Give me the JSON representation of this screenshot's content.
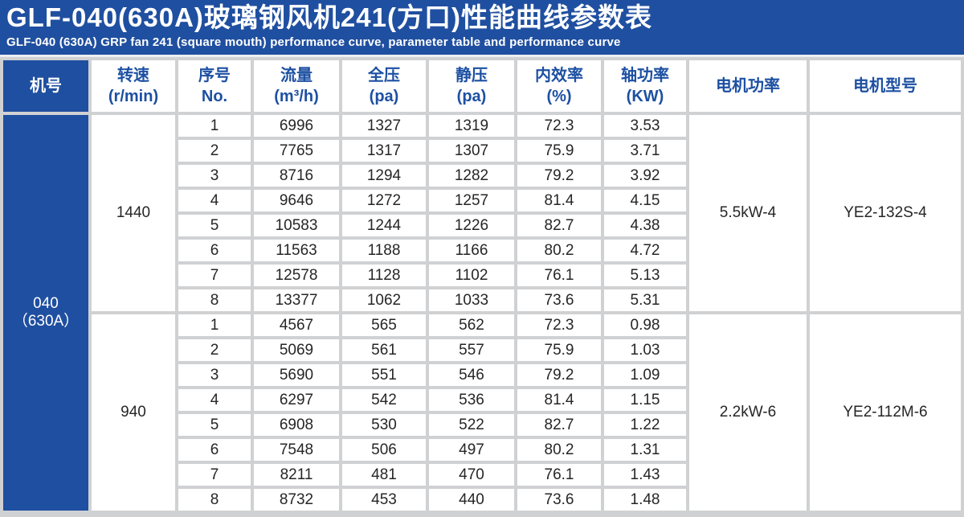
{
  "title": {
    "zh": "GLF-040(630A)玻璃钢风机241(方口)性能曲线参数表",
    "en": "GLF-040 (630A) GRP fan 241 (square mouth) performance curve, parameter table and performance curve"
  },
  "colors": {
    "banner_blue": "#1f4fa0",
    "header_text_blue": "#1d50a2",
    "grid_gray": "#d0d1d3",
    "data_text": "#262626"
  },
  "table": {
    "headers": {
      "machine_no": "机号",
      "speed": [
        "转速",
        "(r/min)"
      ],
      "no": [
        "序号",
        "No."
      ],
      "flow": [
        "流量",
        "(m³/h)"
      ],
      "total_pressure": [
        "全压",
        "(pa)"
      ],
      "static_pressure": [
        "静压",
        "(pa)"
      ],
      "efficiency": [
        "内效率",
        "(%)"
      ],
      "shaft_power": [
        "轴功率",
        "(KW)"
      ],
      "motor_power": "电机功率",
      "motor_model": "电机型号"
    },
    "machine_no": [
      "040",
      "（630A）"
    ],
    "sections": [
      {
        "speed": "1440",
        "motor_power": "5.5kW-4",
        "motor_model": "YE2-132S-4",
        "rows": [
          [
            "1",
            "6996",
            "1327",
            "1319",
            "72.3",
            "3.53"
          ],
          [
            "2",
            "7765",
            "1317",
            "1307",
            "75.9",
            "3.71"
          ],
          [
            "3",
            "8716",
            "1294",
            "1282",
            "79.2",
            "3.92"
          ],
          [
            "4",
            "9646",
            "1272",
            "1257",
            "81.4",
            "4.15"
          ],
          [
            "5",
            "10583",
            "1244",
            "1226",
            "82.7",
            "4.38"
          ],
          [
            "6",
            "11563",
            "1188",
            "1166",
            "80.2",
            "4.72"
          ],
          [
            "7",
            "12578",
            "1128",
            "1102",
            "76.1",
            "5.13"
          ],
          [
            "8",
            "13377",
            "1062",
            "1033",
            "73.6",
            "5.31"
          ]
        ]
      },
      {
        "speed": "940",
        "motor_power": "2.2kW-6",
        "motor_model": "YE2-112M-6",
        "rows": [
          [
            "1",
            "4567",
            "565",
            "562",
            "72.3",
            "0.98"
          ],
          [
            "2",
            "5069",
            "561",
            "557",
            "75.9",
            "1.03"
          ],
          [
            "3",
            "5690",
            "551",
            "546",
            "79.2",
            "1.09"
          ],
          [
            "4",
            "6297",
            "542",
            "536",
            "81.4",
            "1.15"
          ],
          [
            "5",
            "6908",
            "530",
            "522",
            "82.7",
            "1.22"
          ],
          [
            "6",
            "7548",
            "506",
            "497",
            "80.2",
            "1.31"
          ],
          [
            "7",
            "8211",
            "481",
            "470",
            "76.1",
            "1.43"
          ],
          [
            "8",
            "8732",
            "453",
            "440",
            "73.6",
            "1.48"
          ]
        ]
      }
    ]
  }
}
